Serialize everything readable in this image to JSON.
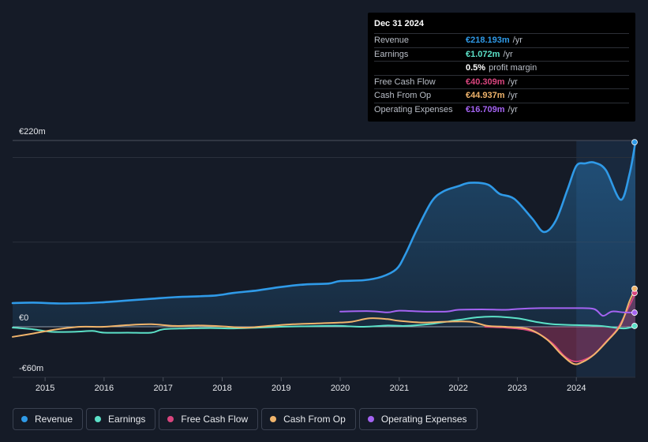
{
  "tooltip": {
    "date": "Dec 31 2024",
    "rows": [
      {
        "label": "Revenue",
        "value": "€218.193m",
        "unit": "/yr",
        "color": "#2f9ae8"
      },
      {
        "label": "Earnings",
        "value": "€1.072m",
        "unit": "/yr",
        "color": "#5ce1c8"
      },
      {
        "label": "",
        "value": "0.5%",
        "unit": "profit margin",
        "color": "#ffffff"
      },
      {
        "label": "Free Cash Flow",
        "value": "€40.309m",
        "unit": "/yr",
        "color": "#d9457e"
      },
      {
        "label": "Cash From Op",
        "value": "€44.937m",
        "unit": "/yr",
        "color": "#f0b46c"
      },
      {
        "label": "Operating Expenses",
        "value": "€16.709m",
        "unit": "/yr",
        "color": "#a463f2"
      }
    ]
  },
  "legend": [
    {
      "label": "Revenue",
      "color": "#2f9ae8"
    },
    {
      "label": "Earnings",
      "color": "#5ce1c8"
    },
    {
      "label": "Free Cash Flow",
      "color": "#d9457e"
    },
    {
      "label": "Cash From Op",
      "color": "#f0b46c"
    },
    {
      "label": "Operating Expenses",
      "color": "#a463f2"
    }
  ],
  "chart_data": {
    "type": "line",
    "y_axis_labels": [
      "€220m",
      "€0",
      "-€60m"
    ],
    "ylim": [
      -60,
      220
    ],
    "xlim": [
      2014.45,
      2025.0
    ],
    "x_ticks": [
      "2015",
      "2016",
      "2017",
      "2018",
      "2019",
      "2020",
      "2021",
      "2022",
      "2023",
      "2024"
    ],
    "x_tick_values": [
      2015,
      2016,
      2017,
      2018,
      2019,
      2020,
      2021,
      2022,
      2023,
      2024
    ],
    "highlight_from": 2024.0,
    "series": [
      {
        "name": "Revenue",
        "color": "#2f9ae8",
        "fill": true,
        "points": [
          [
            2014.45,
            28
          ],
          [
            2014.8,
            28.5
          ],
          [
            2015.25,
            27.5
          ],
          [
            2015.7,
            28
          ],
          [
            2016.0,
            29
          ],
          [
            2016.4,
            31
          ],
          [
            2016.8,
            33
          ],
          [
            2017.2,
            35
          ],
          [
            2017.6,
            36
          ],
          [
            2017.9,
            37
          ],
          [
            2018.2,
            40
          ],
          [
            2018.6,
            43
          ],
          [
            2019.0,
            47
          ],
          [
            2019.4,
            50
          ],
          [
            2019.8,
            51
          ],
          [
            2020.0,
            54
          ],
          [
            2020.4,
            55
          ],
          [
            2020.7,
            59
          ],
          [
            2020.95,
            68
          ],
          [
            2021.1,
            85
          ],
          [
            2021.3,
            115
          ],
          [
            2021.55,
            148
          ],
          [
            2021.75,
            160
          ],
          [
            2022.0,
            166
          ],
          [
            2022.2,
            170
          ],
          [
            2022.5,
            168
          ],
          [
            2022.7,
            157
          ],
          [
            2022.95,
            151
          ],
          [
            2023.25,
            128
          ],
          [
            2023.45,
            112
          ],
          [
            2023.65,
            125
          ],
          [
            2023.85,
            162
          ],
          [
            2024.0,
            190
          ],
          [
            2024.15,
            193
          ],
          [
            2024.3,
            194
          ],
          [
            2024.5,
            185
          ],
          [
            2024.75,
            150
          ],
          [
            2024.9,
            180
          ],
          [
            2025.0,
            218
          ]
        ]
      },
      {
        "name": "Earnings",
        "color": "#5ce1c8",
        "fill": false,
        "points": [
          [
            2014.45,
            -1
          ],
          [
            2014.8,
            -3
          ],
          [
            2015.1,
            -6
          ],
          [
            2015.5,
            -6
          ],
          [
            2015.8,
            -5
          ],
          [
            2016.0,
            -7
          ],
          [
            2016.4,
            -7
          ],
          [
            2016.8,
            -7
          ],
          [
            2017.0,
            -3
          ],
          [
            2017.4,
            -2
          ],
          [
            2017.8,
            -1.5
          ],
          [
            2018.2,
            -2
          ],
          [
            2018.6,
            -1
          ],
          [
            2019.0,
            0
          ],
          [
            2019.4,
            0.5
          ],
          [
            2019.8,
            1
          ],
          [
            2020.0,
            1
          ],
          [
            2020.4,
            0
          ],
          [
            2020.8,
            1.5
          ],
          [
            2021.1,
            1
          ],
          [
            2021.5,
            3
          ],
          [
            2022.0,
            8
          ],
          [
            2022.3,
            11
          ],
          [
            2022.6,
            12
          ],
          [
            2023.0,
            10
          ],
          [
            2023.3,
            6
          ],
          [
            2023.6,
            3
          ],
          [
            2024.0,
            2
          ],
          [
            2024.4,
            1
          ],
          [
            2024.8,
            -2
          ],
          [
            2025.0,
            1
          ]
        ]
      },
      {
        "name": "Free Cash Flow",
        "color": "#d9457e",
        "fill": true,
        "points": [
          [
            2022.45,
            0
          ],
          [
            2022.8,
            -1
          ],
          [
            2023.1,
            -3
          ],
          [
            2023.35,
            -8
          ],
          [
            2023.6,
            -20
          ],
          [
            2023.8,
            -35
          ],
          [
            2023.95,
            -41
          ],
          [
            2024.1,
            -40
          ],
          [
            2024.3,
            -33
          ],
          [
            2024.5,
            -18
          ],
          [
            2024.7,
            -2
          ],
          [
            2024.9,
            25
          ],
          [
            2025.0,
            40
          ]
        ]
      },
      {
        "name": "Cash From Op",
        "color": "#f0b46c",
        "fill": false,
        "points": [
          [
            2014.45,
            -12
          ],
          [
            2014.8,
            -8
          ],
          [
            2015.2,
            -3
          ],
          [
            2015.6,
            0
          ],
          [
            2016.0,
            0
          ],
          [
            2016.4,
            2
          ],
          [
            2016.8,
            3
          ],
          [
            2017.2,
            1
          ],
          [
            2017.6,
            1.5
          ],
          [
            2018.0,
            0.5
          ],
          [
            2018.4,
            -1
          ],
          [
            2018.8,
            1
          ],
          [
            2019.2,
            3
          ],
          [
            2019.6,
            4
          ],
          [
            2020.0,
            5
          ],
          [
            2020.2,
            6
          ],
          [
            2020.5,
            10
          ],
          [
            2020.8,
            9
          ],
          [
            2021.0,
            7
          ],
          [
            2021.4,
            5
          ],
          [
            2021.8,
            6
          ],
          [
            2022.2,
            6
          ],
          [
            2022.5,
            1
          ],
          [
            2022.8,
            0
          ],
          [
            2023.2,
            -3
          ],
          [
            2023.5,
            -15
          ],
          [
            2023.75,
            -33
          ],
          [
            2023.95,
            -44
          ],
          [
            2024.1,
            -42
          ],
          [
            2024.3,
            -33
          ],
          [
            2024.55,
            -15
          ],
          [
            2024.75,
            2
          ],
          [
            2024.9,
            30
          ],
          [
            2025.0,
            45
          ]
        ]
      },
      {
        "name": "Operating Expenses",
        "color": "#a463f2",
        "fill": false,
        "points": [
          [
            2020.0,
            18
          ],
          [
            2020.5,
            18.5
          ],
          [
            2020.8,
            17
          ],
          [
            2021.0,
            19
          ],
          [
            2021.4,
            18
          ],
          [
            2021.8,
            18
          ],
          [
            2022.0,
            20
          ],
          [
            2022.4,
            20.5
          ],
          [
            2022.8,
            20
          ],
          [
            2023.0,
            21
          ],
          [
            2023.4,
            22
          ],
          [
            2023.8,
            22
          ],
          [
            2024.0,
            22
          ],
          [
            2024.3,
            21
          ],
          [
            2024.45,
            13
          ],
          [
            2024.6,
            18
          ],
          [
            2024.8,
            17
          ],
          [
            2025.0,
            16.7
          ]
        ]
      }
    ]
  }
}
